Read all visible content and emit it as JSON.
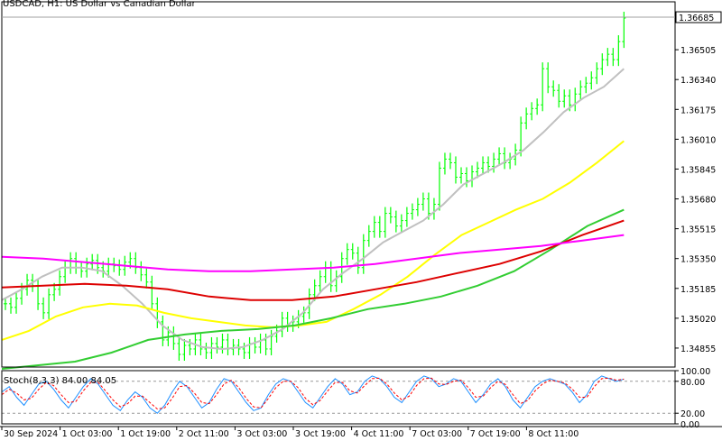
{
  "chart_data": {
    "type": "line",
    "title": "USDCAD, H1:  US Dollar vs Canadian Dollar",
    "current_price": 1.36685,
    "y_ticks": [
      1.36505,
      1.3634,
      1.36175,
      1.3601,
      1.35845,
      1.3568,
      1.35515,
      1.3535,
      1.35185,
      1.3502,
      1.34855
    ],
    "y_tick_labels": [
      "1.36505",
      "1.36340",
      "1.36175",
      "1.36010",
      "1.35845",
      "1.35680",
      "1.35515",
      "1.35350",
      "1.35185",
      "1.35020",
      "1.34855"
    ],
    "x_tick_labels": [
      "30 Sep 2024",
      "1 Oct 03:00",
      "1 Oct 19:00",
      "2 Oct 11:00",
      "3 Oct 03:00",
      "3 Oct 19:00",
      "4 Oct 11:00",
      "7 Oct 03:00",
      "7 Oct 19:00",
      "8 Oct 11:00"
    ],
    "ylim": [
      1.3475,
      1.3677
    ],
    "bars": [
      1.351,
      1.3508,
      1.3513,
      1.3518,
      1.3523,
      1.352,
      1.351,
      1.3505,
      1.3515,
      1.3518,
      1.3525,
      1.353,
      1.3535,
      1.353,
      1.3528,
      1.3532,
      1.3534,
      1.353,
      1.3528,
      1.3532,
      1.3531,
      1.3529,
      1.3533,
      1.3535,
      1.353,
      1.3526,
      1.3522,
      1.351,
      1.35,
      1.349,
      1.3494,
      1.3488,
      1.3482,
      1.3487,
      1.3485,
      1.349,
      1.3485,
      1.3483,
      1.3488,
      1.3486,
      1.349,
      1.3485,
      1.3487,
      1.3485,
      1.3483,
      1.3488,
      1.3486,
      1.349,
      1.3485,
      1.3492,
      1.3495,
      1.3502,
      1.3498,
      1.35,
      1.3503,
      1.3505,
      1.3515,
      1.352,
      1.3525,
      1.353,
      1.352,
      1.3525,
      1.3535,
      1.354,
      1.3538,
      1.353,
      1.3545,
      1.355,
      1.3555,
      1.355,
      1.356,
      1.3558,
      1.3553,
      1.3556,
      1.356,
      1.3562,
      1.3565,
      1.3568,
      1.356,
      1.3565,
      1.3585,
      1.359,
      1.3588,
      1.358,
      1.3582,
      1.3578,
      1.3583,
      1.3585,
      1.3588,
      1.3586,
      1.359,
      1.3593,
      1.3588,
      1.359,
      1.3595,
      1.361,
      1.3615,
      1.3618,
      1.362,
      1.364,
      1.363,
      1.3628,
      1.3622,
      1.3625,
      1.362,
      1.3626,
      1.363,
      1.3632,
      1.3635,
      1.364,
      1.3645,
      1.3648,
      1.3645,
      1.3655,
      1.3668
    ],
    "series": [
      {
        "name": "",
        "color": "#c0c0c0",
        "values": [
          1.3512,
          1.3518,
          1.3525,
          1.353,
          1.353,
          1.3528,
          1.352,
          1.351,
          1.3498,
          1.349,
          1.3486,
          1.3485,
          1.3486,
          1.349,
          1.3496,
          1.3505,
          1.3518,
          1.3527,
          1.3535,
          1.3544,
          1.355,
          1.3556,
          1.3565,
          1.3576,
          1.3582,
          1.3588,
          1.3595,
          1.3605,
          1.3616,
          1.3624,
          1.363,
          1.364
        ]
      },
      {
        "name": "",
        "color": "#ffff00",
        "values": [
          1.349,
          1.3495,
          1.3503,
          1.3508,
          1.351,
          1.3509,
          1.3505,
          1.3502,
          1.35,
          1.3498,
          1.3497,
          1.3498,
          1.35,
          1.3507,
          1.3515,
          1.3525,
          1.3537,
          1.3548,
          1.3555,
          1.3562,
          1.3568,
          1.3577,
          1.3588,
          1.36
        ]
      },
      {
        "name": "",
        "color": "#32cd32",
        "values": [
          1.3474,
          1.3476,
          1.3478,
          1.3483,
          1.349,
          1.3493,
          1.3495,
          1.3496,
          1.3498,
          1.3502,
          1.3507,
          1.351,
          1.3514,
          1.352,
          1.3528,
          1.354,
          1.3553,
          1.3562
        ]
      },
      {
        "name": "",
        "color": "#dd0000",
        "values": [
          1.3519,
          1.352,
          1.3521,
          1.352,
          1.3518,
          1.3514,
          1.3512,
          1.3512,
          1.3514,
          1.3518,
          1.3522,
          1.3527,
          1.3532,
          1.3539,
          1.3548,
          1.3556
        ]
      },
      {
        "name": "",
        "color": "#ff00ff",
        "values": [
          1.3536,
          1.3535,
          1.3533,
          1.3531,
          1.3529,
          1.3528,
          1.3528,
          1.3529,
          1.353,
          1.3532,
          1.3535,
          1.3538,
          1.354,
          1.3542,
          1.3545,
          1.3548
        ]
      }
    ],
    "stochastic": {
      "title": "Stoch(8,3,3) 84.00 84.05",
      "k": 84.0,
      "d": 84.05,
      "levels": [
        100,
        80,
        20,
        0
      ],
      "level_labels": [
        "100.00",
        "80.00",
        "20.00",
        "0.00"
      ],
      "main_color": "#1e90ff",
      "signal_color": "#ff0000",
      "main": [
        60,
        70,
        50,
        35,
        55,
        75,
        80,
        65,
        45,
        30,
        50,
        70,
        85,
        75,
        55,
        35,
        25,
        45,
        60,
        50,
        30,
        20,
        35,
        60,
        80,
        70,
        50,
        30,
        40,
        65,
        85,
        80,
        60,
        40,
        25,
        30,
        55,
        75,
        85,
        80,
        60,
        40,
        30,
        50,
        70,
        85,
        75,
        55,
        60,
        80,
        90,
        85,
        70,
        50,
        40,
        60,
        80,
        90,
        85,
        70,
        75,
        85,
        80,
        60,
        40,
        55,
        75,
        85,
        70,
        45,
        30,
        50,
        70,
        80,
        85,
        80,
        75,
        60,
        40,
        55,
        80,
        90,
        85,
        80,
        84
      ],
      "signal": [
        55,
        65,
        58,
        45,
        48,
        65,
        78,
        72,
        55,
        40,
        42,
        62,
        78,
        78,
        62,
        45,
        32,
        38,
        52,
        52,
        40,
        28,
        30,
        48,
        70,
        72,
        58,
        40,
        38,
        55,
        75,
        82,
        68,
        48,
        32,
        30,
        48,
        68,
        80,
        80,
        68,
        48,
        36,
        44,
        62,
        78,
        78,
        62,
        58,
        72,
        85,
        86,
        75,
        58,
        45,
        52,
        72,
        85,
        86,
        75,
        74,
        80,
        82,
        68,
        50,
        52,
        68,
        80,
        74,
        55,
        38,
        44,
        62,
        75,
        82,
        80,
        77,
        66,
        50,
        50,
        70,
        85,
        86,
        82,
        84
      ]
    }
  }
}
